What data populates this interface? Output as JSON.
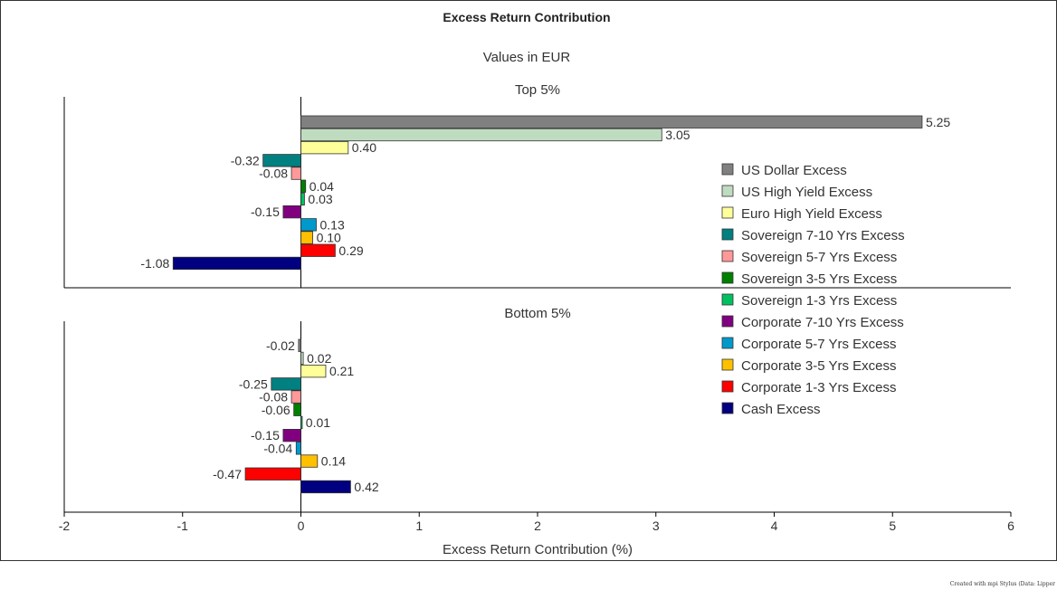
{
  "chart_data": {
    "type": "bar",
    "orientation": "horizontal",
    "title": "Excess Return Contribution",
    "subtitle": "Values in EUR",
    "xlabel": "Excess Return Contribution (%)",
    "xlim": [
      -2,
      6
    ],
    "xticks": [
      "-2",
      "-1",
      "0",
      "1",
      "2",
      "3",
      "4",
      "5",
      "6"
    ],
    "grid": false,
    "legend_position": "right",
    "categories": [
      "US Dollar Excess",
      "US High Yield Excess",
      "Euro High Yield Excess",
      "Sovereign 7-10 Yrs Excess",
      "Sovereign 5-7 Yrs Excess",
      "Sovereign 3-5 Yrs Excess",
      "Sovereign 1-3 Yrs Excess",
      "Corporate 7-10 Yrs Excess",
      "Corporate 5-7 Yrs Excess",
      "Corporate 3-5 Yrs Excess",
      "Corporate 1-3 Yrs Excess",
      "Cash Excess"
    ],
    "colors": [
      "#808080",
      "#c0dcc0",
      "#ffff99",
      "#008080",
      "#ff9999",
      "#008000",
      "#00c060",
      "#800080",
      "#0099cc",
      "#ffc000",
      "#ff0000",
      "#000080"
    ],
    "panels": [
      {
        "title": "Top 5%",
        "values": [
          5.25,
          3.05,
          0.4,
          -0.32,
          -0.08,
          0.04,
          0.03,
          -0.15,
          0.13,
          0.1,
          0.29,
          -1.08
        ],
        "labels": [
          "5.25",
          "3.05",
          "0.40",
          "-0.32",
          "-0.08",
          "0.04",
          "0.03",
          "-0.15",
          "0.13",
          "0.10",
          "0.29",
          "-1.08"
        ]
      },
      {
        "title": "Bottom 5%",
        "values": [
          -0.02,
          0.02,
          0.21,
          -0.25,
          -0.08,
          -0.06,
          0.01,
          -0.15,
          -0.04,
          0.14,
          -0.47,
          0.42
        ],
        "labels": [
          "-0.02",
          "0.02",
          "0.21",
          "-0.25",
          "-0.08",
          "-0.06",
          "0.01",
          "-0.15",
          "-0.04",
          "0.14",
          "-0.47",
          "0.42"
        ]
      }
    ]
  },
  "footer": {
    "credit": "Created with mpi Stylus (Data: Lipper"
  }
}
